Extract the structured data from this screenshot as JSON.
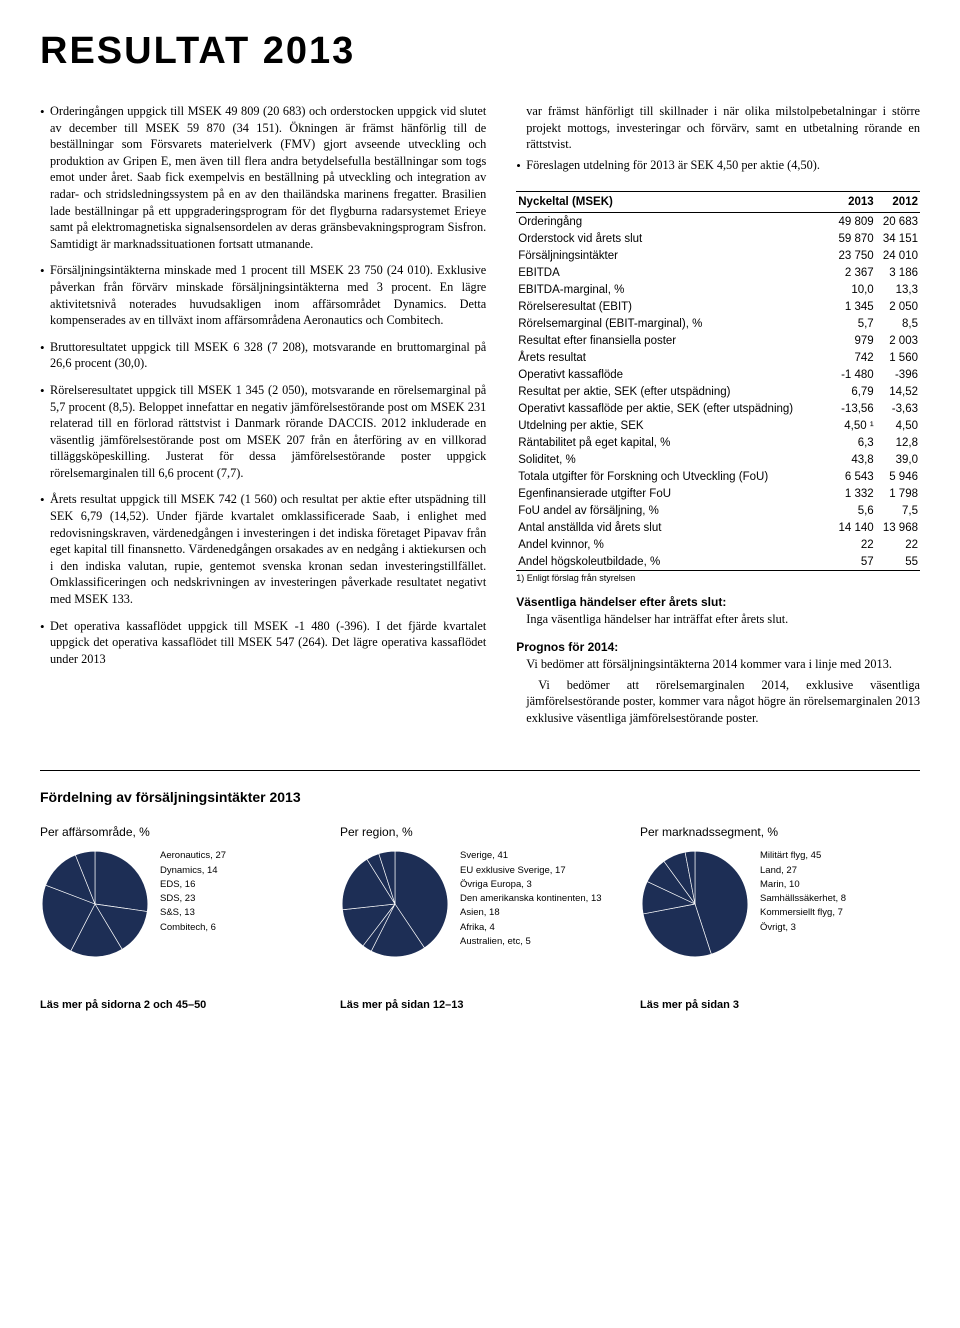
{
  "title": "RESULTAT 2013",
  "left_bullets": [
    "Orderingången uppgick till MSEK 49 809 (20 683) och orderstocken uppgick vid slutet av december till MSEK 59 870 (34 151). Ökningen är främst hänförlig till de beställningar som Försvarets materielverk (FMV) gjort avseende utveckling och produktion av Gripen E, men även till flera andra betydelsefulla beställningar som togs emot under året. Saab fick exempelvis en beställning på utveckling och integration av radar- och stridsledningssystem på en av den thailändska marinens fregatter. Brasilien lade beställningar på ett uppgraderingsprogram för det flygburna radarsystemet Erieye samt på elektromagnetiska signalsensordelen av deras gränsbevakningsprogram Sisfron. Samtidigt är marknadssituationen fortsatt utmanande.",
    "Försäljningsintäkterna minskade med 1 procent till MSEK 23 750 (24 010). Exklusive påverkan från förvärv minskade försäljningsintäkterna med 3 procent. En lägre aktivitetsnivå noterades huvudsakligen inom affärsområdet Dynamics. Detta kompenserades av en tillväxt inom affärsområdena Aeronautics och Combitech.",
    "Bruttoresultatet uppgick till MSEK 6 328 (7 208), motsvarande en bruttomarginal på 26,6 procent (30,0).",
    "Rörelseresultatet uppgick till MSEK 1 345 (2 050), motsvarande en rörelsemarginal på 5,7 procent (8,5). Beloppet innefattar en negativ jämförelsestörande post om MSEK 231 relaterad till en förlorad rättstvist i Danmark rörande DACCIS. 2012 inkluderade en väsentlig jämförelsestörande post om MSEK 207 från en återföring av en villkorad tilläggsköpeskilling. Justerat för dessa jämförelsestörande poster uppgick rörelsemarginalen till 6,6 procent (7,7).",
    "Årets resultat uppgick till MSEK 742 (1 560) och resultat per aktie efter utspädning till SEK 6,79 (14,52). Under fjärde kvartalet omklassificerade Saab, i enlighet med redovisningskraven, värdenedgången i investeringen i det indiska företaget Pipavav från eget kapital till finansnetto. Värdenedgången orsakades av en nedgång i aktiekursen och i den indiska valutan, rupie, gentemot svenska kronan sedan investeringstillfället. Omklassificeringen och nedskrivningen av investeringen påverkade resultatet negativt med MSEK 133.",
    "Det operativa kassaflödet uppgick till MSEK -1 480 (-396). I det fjärde kvartalet uppgick det operativa kassaflödet till MSEK 547 (264). Det lägre operativa kassaflödet under 2013"
  ],
  "right_cont": "var främst hänförligt till skillnader i när olika milstolpebetalningar i större projekt mottogs, investeringar och förvärv, samt en utbetalning rörande en rättstvist.",
  "right_bullets": [
    "Föreslagen utdelning för 2013 är SEK 4,50 per aktie (4,50)."
  ],
  "kpi": {
    "header": [
      "Nyckeltal (MSEK)",
      "2013",
      "2012"
    ],
    "rows": [
      {
        "l": "Orderingång",
        "a": "49 809",
        "b": "20 683"
      },
      {
        "l": "Orderstock vid årets slut",
        "a": "59 870",
        "b": "34 151"
      },
      {
        "l": "Försäljningsintäkter",
        "a": "23 750",
        "b": "24 010"
      },
      {
        "l": "EBITDA",
        "a": "2 367",
        "b": "3 186"
      },
      {
        "l": "EBITDA-marginal, %",
        "a": "10,0",
        "b": "13,3"
      },
      {
        "l": "Rörelseresultat (EBIT)",
        "a": "1 345",
        "b": "2 050"
      },
      {
        "l": "Rörelsemarginal (EBIT-marginal), %",
        "a": "5,7",
        "b": "8,5"
      },
      {
        "l": "Resultat efter finansiella poster",
        "a": "979",
        "b": "2 003"
      },
      {
        "l": "Årets resultat",
        "a": "742",
        "b": "1 560"
      },
      {
        "l": "Operativt kassaflöde",
        "a": "-1 480",
        "b": "-396"
      },
      {
        "l": "Resultat per aktie, SEK (efter utspädning)",
        "a": "6,79",
        "b": "14,52"
      },
      {
        "l": "Operativt kassaflöde per aktie, SEK (efter utspädning)",
        "a": "-13,56",
        "b": "-3,63"
      },
      {
        "l": "Utdelning per aktie, SEK",
        "a": "4,50 ¹",
        "b": "4,50"
      },
      {
        "l": "Räntabilitet på eget kapital, %",
        "a": "6,3",
        "b": "12,8"
      },
      {
        "l": "Soliditet, %",
        "a": "43,8",
        "b": "39,0"
      },
      {
        "l": "Totala utgifter för Forskning och Utveckling (FoU)",
        "a": "6 543",
        "b": "5 946"
      },
      {
        "l": "Egenfinansierade utgifter FoU",
        "a": "1 332",
        "b": "1 798"
      },
      {
        "l": "FoU andel av försäljning, %",
        "a": "5,6",
        "b": "7,5"
      },
      {
        "l": "Antal anställda vid årets slut",
        "a": "14 140",
        "b": "13 968"
      },
      {
        "l": "Andel kvinnor, %",
        "a": "22",
        "b": "22"
      },
      {
        "l": "Andel högskoleutbildade, %",
        "a": "57",
        "b": "55"
      }
    ],
    "footnote": "1) Enligt förslag från styrelsen"
  },
  "events": {
    "h1": "Väsentliga händelser efter årets slut:",
    "p1": "Inga väsentliga händelser har inträffat efter årets slut.",
    "h2": "Prognos för 2014:",
    "p2": "Vi bedömer att försäljningsintäkterna 2014 kommer vara i linje med 2013.",
    "p3": "Vi bedömer att rörelsemarginalen 2014, exklusive väsentliga jämförelsestörande poster, kommer vara något högre än rörelsemarginalen 2013 exklusive väsentliga jämförelsestörande poster."
  },
  "charts": {
    "title": "Fördelning av försäljningsintäkter 2013",
    "pie_color": "#1d2e55",
    "line_color": "#ffffff",
    "pies": [
      {
        "label": "Per affärsområde, %",
        "slices": [
          {
            "name": "Aeronautics",
            "v": 27
          },
          {
            "name": "Dynamics",
            "v": 14
          },
          {
            "name": "EDS",
            "v": 16
          },
          {
            "name": "SDS",
            "v": 23
          },
          {
            "name": "S&S",
            "v": 13
          },
          {
            "name": "Combitech",
            "v": 6
          }
        ],
        "footer": "Läs mer på sidorna 2 och 45–50"
      },
      {
        "label": "Per region, %",
        "slices": [
          {
            "name": "Sverige",
            "v": 41
          },
          {
            "name": "EU exklusive Sverige",
            "v": 17
          },
          {
            "name": "Övriga Europa",
            "v": 3
          },
          {
            "name": "Den amerikanska kontinenten",
            "v": 13
          },
          {
            "name": "Asien",
            "v": 18
          },
          {
            "name": "Afrika",
            "v": 4
          },
          {
            "name": "Australien, etc",
            "v": 5
          }
        ],
        "footer": "Läs mer på sidan 12–13"
      },
      {
        "label": "Per marknadssegment, %",
        "slices": [
          {
            "name": "Militärt flyg",
            "v": 45
          },
          {
            "name": "Land",
            "v": 27
          },
          {
            "name": "Marin",
            "v": 10
          },
          {
            "name": "Samhällssäkerhet",
            "v": 8
          },
          {
            "name": "Kommersiellt flyg",
            "v": 7
          },
          {
            "name": "Övrigt",
            "v": 3
          }
        ],
        "footer": "Läs mer på sidan 3"
      }
    ]
  }
}
